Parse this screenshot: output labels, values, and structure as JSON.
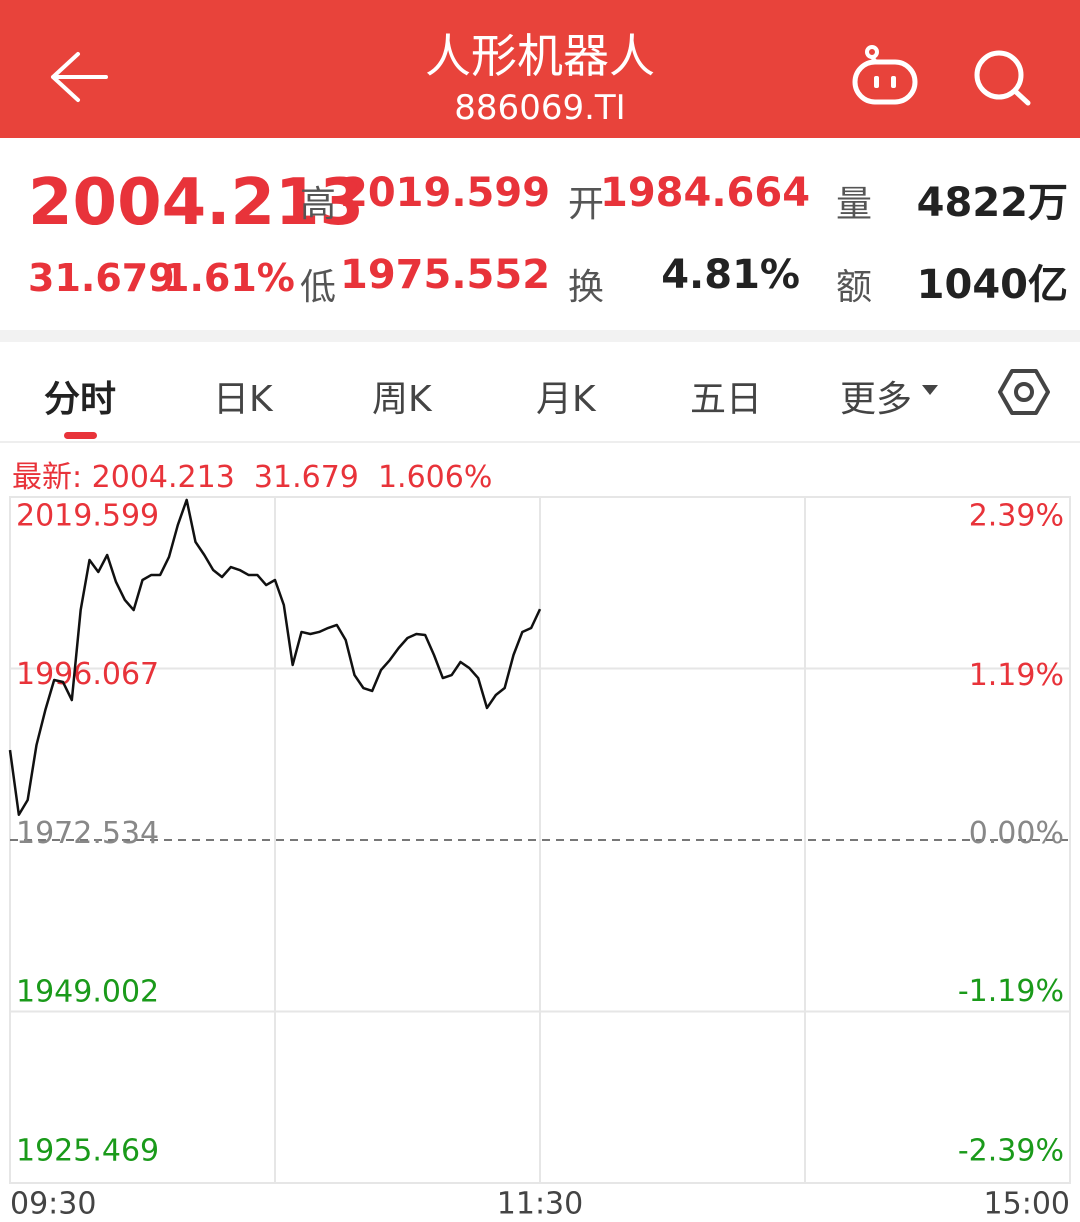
{
  "header": {
    "title": "人形机器人",
    "code": "886069.TI"
  },
  "quote": {
    "price": "2004.213",
    "change": "31.679",
    "change_pct": "1.61%",
    "stats": [
      {
        "label": "高",
        "value": "2019.599"
      },
      {
        "label": "开",
        "value": "1984.664"
      },
      {
        "label": "量",
        "value": "4822万"
      },
      {
        "label": "低",
        "value": "1975.552"
      },
      {
        "label": "换",
        "value": "4.81%"
      },
      {
        "label": "额",
        "value": "1040亿"
      }
    ]
  },
  "tabs": [
    "分时",
    "日K",
    "周K",
    "月K",
    "五日",
    "更多"
  ],
  "latest": {
    "label": "最新:",
    "price": "2004.213",
    "change": "31.679",
    "change_pct": "1.606%"
  },
  "chart_data": {
    "type": "line",
    "x": [
      0,
      2,
      4,
      6,
      8,
      10,
      12,
      14,
      16,
      18,
      20,
      22,
      24,
      26,
      28,
      30,
      32,
      34,
      36,
      38,
      40,
      42,
      44,
      46,
      48,
      50,
      52,
      54,
      56,
      58,
      60,
      62,
      64,
      66,
      68,
      70,
      72,
      74,
      76,
      78,
      80,
      82,
      84,
      86,
      88,
      90,
      92,
      94,
      96,
      98,
      100,
      102,
      104,
      106,
      108,
      110,
      112,
      114,
      116,
      118,
      120
    ],
    "series": [
      {
        "color": "#111111",
        "values": [
          1984.88,
          1976.0,
          1978.02,
          1985.57,
          1990.37,
          1994.49,
          1994.21,
          1991.74,
          2004.09,
          2010.96,
          2009.31,
          2011.64,
          2007.94,
          2005.47,
          2004.09,
          2008.21,
          2008.9,
          2008.9,
          2011.37,
          2015.76,
          2019.2,
          2013.43,
          2011.64,
          2009.58,
          2008.62,
          2009.99,
          2009.58,
          2008.9,
          2008.9,
          2007.52,
          2008.21,
          2004.78,
          1996.55,
          2001.08,
          2000.8,
          2001.08,
          2001.62,
          2002.04,
          1999.98,
          1995.17,
          1993.39,
          1992.98,
          1995.86,
          1997.23,
          1998.88,
          2000.25,
          2000.8,
          2000.66,
          1997.92,
          1994.76,
          1995.17,
          1996.96,
          1996.13,
          1994.76,
          1990.65,
          1992.43,
          1993.39,
          1997.92,
          2001.08,
          2001.62,
          2004.21
        ]
      }
    ],
    "xlim": [
      0,
      240
    ],
    "xticks": [
      {
        "value": 0,
        "label": "09:30"
      },
      {
        "value": 120,
        "label": "11:30"
      },
      {
        "value": 240,
        "label": "15:00"
      }
    ],
    "ylim": [
      1925.469,
      2019.599
    ],
    "yticks": [
      2019.599,
      1996.067,
      1972.534,
      1949.002,
      1925.469
    ],
    "y2lim": [
      -2.39,
      2.39
    ],
    "y2ticks": [
      {
        "value": 2.39,
        "label": "2.39%"
      },
      {
        "value": 1.19,
        "label": "1.19%"
      },
      {
        "value": 0,
        "label": "0.00%"
      },
      {
        "value": -1.19,
        "label": "-1.19%"
      },
      {
        "value": -2.39,
        "label": "-2.39%"
      }
    ],
    "grid": true
  }
}
